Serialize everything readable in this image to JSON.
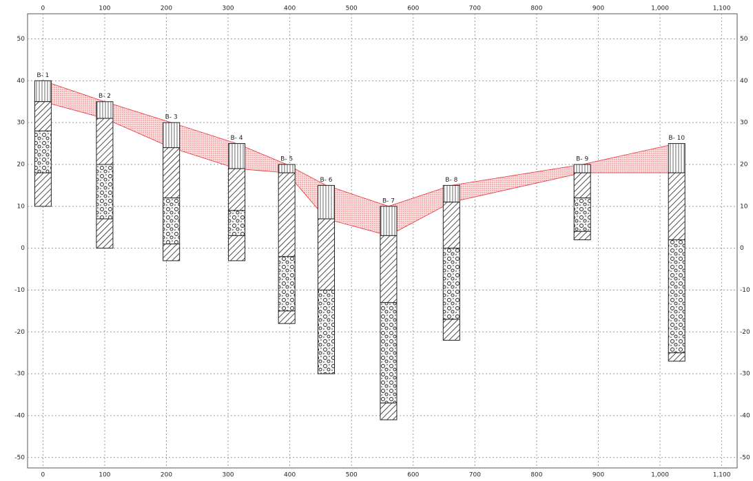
{
  "chart_data": {
    "type": "borehole-section",
    "xlim": [
      -25,
      1125
    ],
    "xticks": [
      0,
      100,
      200,
      300,
      400,
      500,
      600,
      700,
      800,
      900,
      {
        "value": 1000,
        "label": "1,000"
      },
      {
        "value": 1100,
        "label": "1,100"
      }
    ],
    "ylim": [
      -52.5,
      56
    ],
    "yticks": [
      -50,
      -40,
      -30,
      -20,
      -10,
      0,
      10,
      20,
      30,
      40,
      50
    ],
    "grid": true,
    "band_color": "#e8303a",
    "boreholes": [
      {
        "name": "B- 1",
        "x": 0,
        "layers": [
          {
            "top": 40,
            "bottom": 35,
            "pattern": "fill"
          },
          {
            "top": 35,
            "bottom": 28,
            "pattern": "hatch"
          },
          {
            "top": 28,
            "bottom": 18,
            "pattern": "gravel"
          },
          {
            "top": 18,
            "bottom": 10,
            "pattern": "hatch"
          }
        ]
      },
      {
        "name": "B- 2",
        "x": 100,
        "layers": [
          {
            "top": 35,
            "bottom": 31,
            "pattern": "fill"
          },
          {
            "top": 31,
            "bottom": 20,
            "pattern": "hatch"
          },
          {
            "top": 20,
            "bottom": 7,
            "pattern": "gravel"
          },
          {
            "top": 7,
            "bottom": 0,
            "pattern": "hatch"
          }
        ]
      },
      {
        "name": "B- 3",
        "x": 208,
        "layers": [
          {
            "top": 30,
            "bottom": 24,
            "pattern": "fill"
          },
          {
            "top": 24,
            "bottom": 12,
            "pattern": "hatch"
          },
          {
            "top": 12,
            "bottom": 1,
            "pattern": "gravel"
          },
          {
            "top": 1,
            "bottom": -3,
            "pattern": "hatch"
          }
        ]
      },
      {
        "name": "B- 4",
        "x": 314,
        "layers": [
          {
            "top": 25,
            "bottom": 19,
            "pattern": "fill"
          },
          {
            "top": 19,
            "bottom": 9,
            "pattern": "hatch"
          },
          {
            "top": 9,
            "bottom": 3,
            "pattern": "gravel"
          },
          {
            "top": 3,
            "bottom": -3,
            "pattern": "hatch"
          }
        ]
      },
      {
        "name": "B- 5",
        "x": 395,
        "layers": [
          {
            "top": 20,
            "bottom": 18,
            "pattern": "fill"
          },
          {
            "top": 18,
            "bottom": -2,
            "pattern": "hatch"
          },
          {
            "top": -2,
            "bottom": -15,
            "pattern": "gravel"
          },
          {
            "top": -15,
            "bottom": -18,
            "pattern": "hatch"
          }
        ]
      },
      {
        "name": "B- 6",
        "x": 459,
        "layers": [
          {
            "top": 15,
            "bottom": 7,
            "pattern": "fill"
          },
          {
            "top": 7,
            "bottom": -10,
            "pattern": "hatch"
          },
          {
            "top": -10,
            "bottom": -30,
            "pattern": "gravel"
          }
        ]
      },
      {
        "name": "B- 7",
        "x": 560,
        "layers": [
          {
            "top": 10,
            "bottom": 3,
            "pattern": "fill"
          },
          {
            "top": 3,
            "bottom": -13,
            "pattern": "hatch"
          },
          {
            "top": -13,
            "bottom": -37,
            "pattern": "gravel"
          },
          {
            "top": -37,
            "bottom": -41,
            "pattern": "hatch"
          }
        ]
      },
      {
        "name": "B- 8",
        "x": 662,
        "layers": [
          {
            "top": 15,
            "bottom": 11,
            "pattern": "fill"
          },
          {
            "top": 11,
            "bottom": 0,
            "pattern": "hatch"
          },
          {
            "top": 0,
            "bottom": -17,
            "pattern": "gravel"
          },
          {
            "top": -17,
            "bottom": -22,
            "pattern": "hatch"
          }
        ]
      },
      {
        "name": "B- 9",
        "x": 874,
        "layers": [
          {
            "top": 20,
            "bottom": 18,
            "pattern": "fill"
          },
          {
            "top": 18,
            "bottom": 12,
            "pattern": "hatch"
          },
          {
            "top": 12,
            "bottom": 4,
            "pattern": "gravel"
          },
          {
            "top": 4,
            "bottom": 2,
            "pattern": "hatch"
          }
        ]
      },
      {
        "name": "B- 10",
        "x": 1027,
        "layers": [
          {
            "top": 25,
            "bottom": 18,
            "pattern": "fill"
          },
          {
            "top": 18,
            "bottom": 2,
            "pattern": "hatch"
          },
          {
            "top": 2,
            "bottom": -25,
            "pattern": "gravel"
          },
          {
            "top": -25,
            "bottom": -27,
            "pattern": "hatch"
          }
        ]
      }
    ]
  }
}
